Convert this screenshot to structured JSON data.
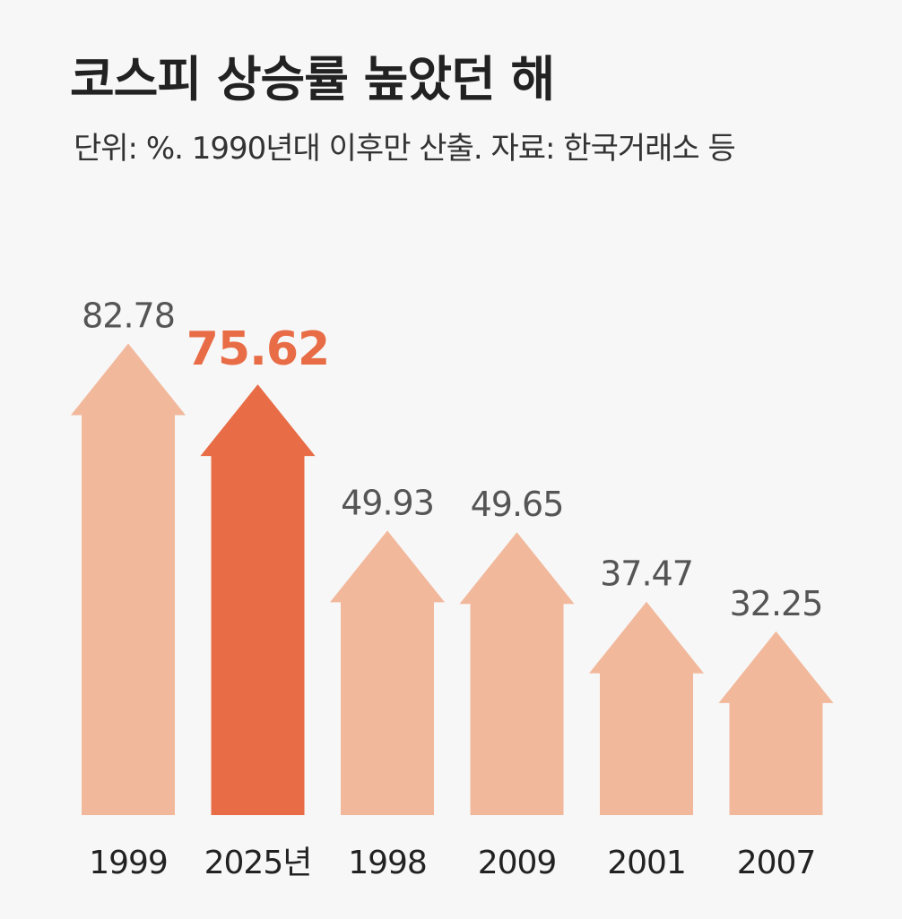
{
  "header": {
    "title": "코스피 상승률 높았던 해",
    "subtitle": "단위: %. 1990년대 이후만 산출. 자료: 한국거래소 등"
  },
  "colors": {
    "normal_bar": "#f2b89b",
    "highlight_bar": "#e86c45",
    "normal_label": "#555555",
    "highlight_label": "#e86c45",
    "category_label": "#222222",
    "background": "#f7f7f7"
  },
  "chart_data": {
    "type": "bar",
    "title": "코스피 상승률 높았던 해",
    "subtitle": "단위: %. 1990년대 이후만 산출. 자료: 한국거래소 등",
    "xlabel": "",
    "ylabel": "",
    "categories": [
      "1999",
      "2025년",
      "1998",
      "2009",
      "2001",
      "2007"
    ],
    "values": [
      82.78,
      75.62,
      49.93,
      49.65,
      37.47,
      32.25
    ],
    "value_labels": [
      "82.78",
      "75.62",
      "49.93",
      "49.65",
      "37.47",
      "32.25"
    ],
    "highlight_index": 1,
    "ylim": [
      0,
      90
    ],
    "grid": false,
    "legend": "none",
    "mark_shape": "upward-arrow"
  }
}
